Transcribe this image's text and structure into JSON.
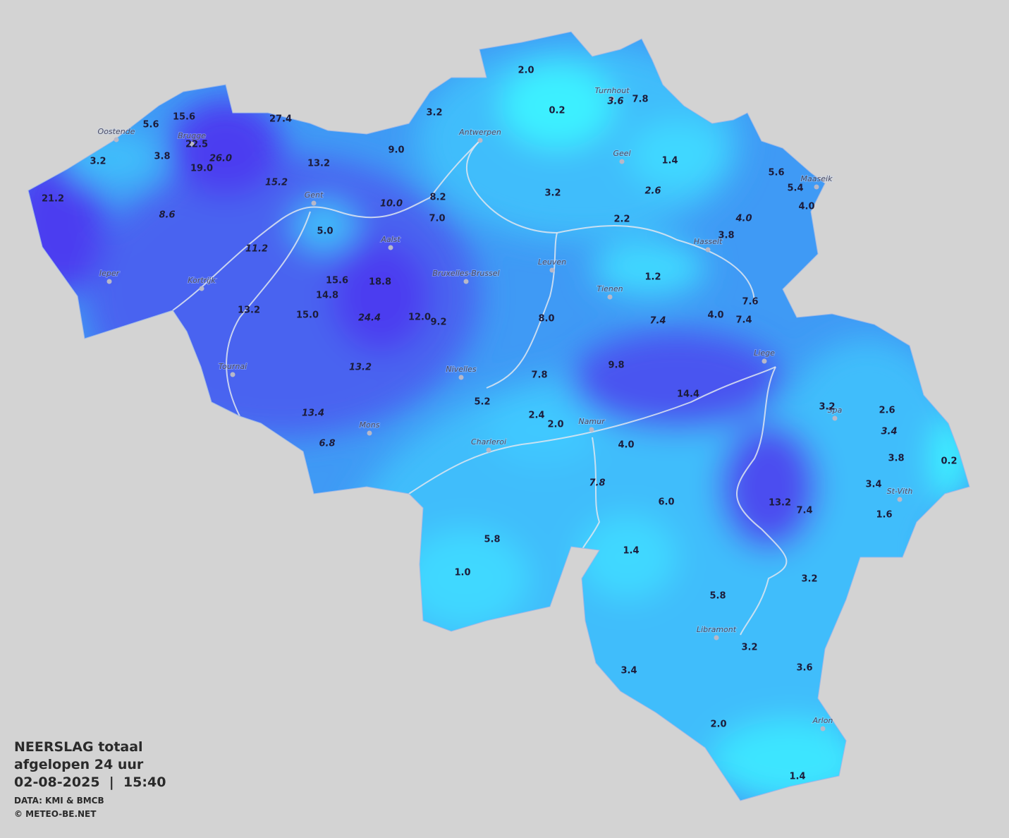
{
  "title": [
    "NEERSLAG totaal",
    "afgelopen 24 uur",
    "02-08-2025  |  15:40"
  ],
  "credits": [
    "DATA: KMI & BMCB",
    "© METEO-BE.NET"
  ],
  "cities": [
    "Oostende",
    "Brugge",
    "Gent",
    "Antwerpen",
    "Turnhout",
    "Geel",
    "Maaseik",
    "Hasselt",
    "Leuven",
    "Aalst",
    "Bruxelles-Brussel",
    "Ieper",
    "Kortrijk",
    "Tienen",
    "Liege",
    "Tournai",
    "Nivelles",
    "Spa",
    "Namur",
    "Mons",
    "Charleroi",
    "St-Vith",
    "Libramont",
    "Arlon"
  ],
  "stations": [
    "2.0",
    "0.2",
    "3.6",
    "7.8",
    "3.2",
    "15.6",
    "5.6",
    "27.4",
    "22.5",
    "26.0",
    "3.8",
    "3.2",
    "19.0",
    "9.0",
    "13.2",
    "1.4",
    "15.2",
    "5.6",
    "5.4",
    "3.2",
    "2.6",
    "21.2",
    "8.2",
    "10.0",
    "4.0",
    "8.6",
    "7.0",
    "2.2",
    "4.0",
    "5.0",
    "3.8",
    "11.2",
    "1.2",
    "15.6",
    "18.8",
    "14.8",
    "7.6",
    "13.2",
    "15.0",
    "24.4",
    "12.0",
    "9.2",
    "8.0",
    "7.4",
    "4.0",
    "7.4",
    "9.8",
    "13.2",
    "7.8",
    "14.4",
    "5.2",
    "3.2",
    "2.6",
    "13.4",
    "2.4",
    "2.0",
    "3.4",
    "6.8",
    "4.0",
    "3.8",
    "0.2",
    "7.8",
    "3.4",
    "6.0",
    "13.2",
    "7.4",
    "1.6",
    "5.8",
    "1.4",
    "1.0",
    "3.2",
    "5.8",
    "3.2",
    "3.4",
    "3.6",
    "2.0",
    "1.4"
  ]
}
